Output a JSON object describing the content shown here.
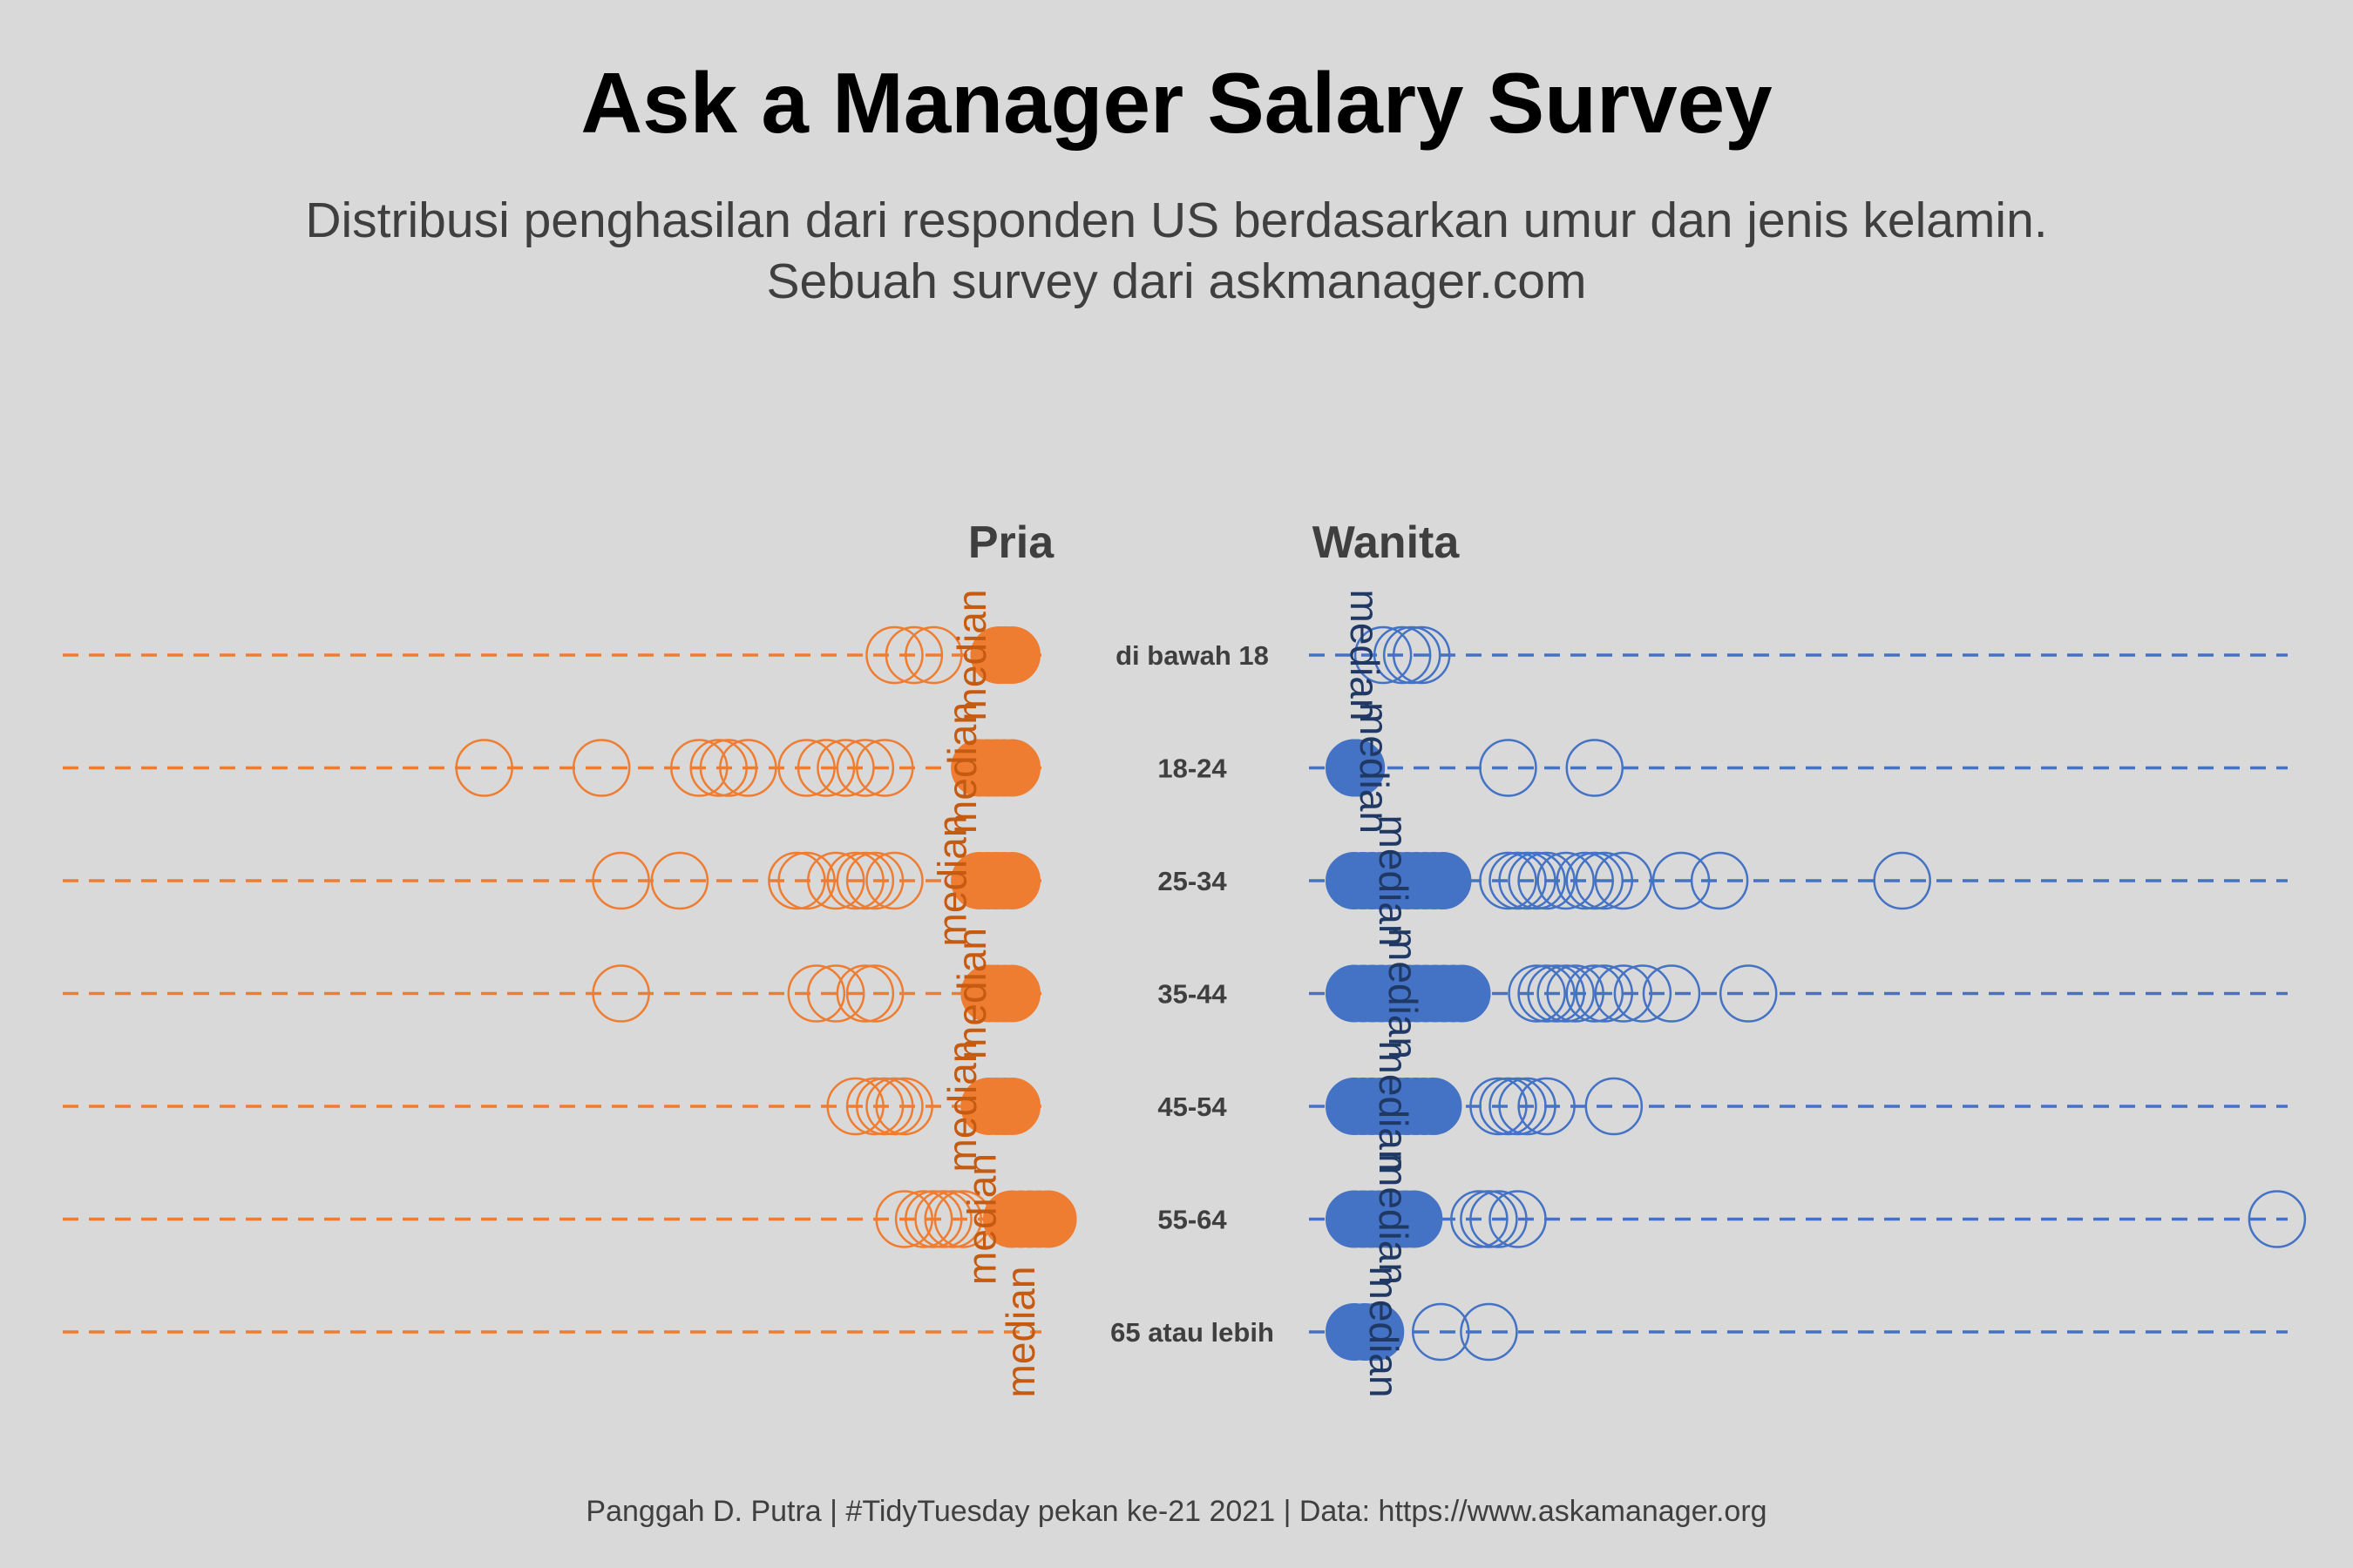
{
  "title": "Ask a Manager Salary Survey",
  "subtitle_lines": [
    "Distribusi penghasilan dari responden US berdasarkan umur dan jenis kelamin.",
    "Sebuah survey dari askmanager.com"
  ],
  "caption": "Panggah D. Putra | #TidyTuesday pekan ke-21 2021 | Data: https://www.askamanager.org",
  "colors": {
    "background": "#d9d9d9",
    "pria": "#ef7d31",
    "wanita": "#4472c4",
    "pria_median_text": "#c55a11",
    "wanita_median_text": "#203864",
    "label_text": "#3f3f3f"
  },
  "chart_data": {
    "type": "scatter",
    "x_unit": "relative salary (0 = center, 1 = far end)",
    "categories": [
      "di bawah 18",
      "18-24",
      "25-34",
      "35-44",
      "45-54",
      "55-64",
      "65 atau lebih"
    ],
    "median_label": "median",
    "series": [
      {
        "name": "Pria",
        "side": "left",
        "dense_extent": [
          0.07,
          0.09,
          0.09,
          0.08,
          0.08,
          0.02,
          0.0
        ],
        "median": [
          0.05,
          0.06,
          0.07,
          0.05,
          0.06,
          0.04,
          0.0
        ],
        "outliers": [
          [
            0.08,
            0.1,
            0.12
          ],
          [
            0.54,
            0.42,
            0.32,
            0.3,
            0.29,
            0.27,
            0.21,
            0.19,
            0.17,
            0.15,
            0.13
          ],
          [
            0.4,
            0.34,
            0.22,
            0.21,
            0.18,
            0.16,
            0.15,
            0.14,
            0.12
          ],
          [
            0.4,
            0.2,
            0.18,
            0.15,
            0.14
          ],
          [
            0.16,
            0.14,
            0.13,
            0.12,
            0.11
          ],
          [
            0.11,
            0.09,
            0.08,
            0.07,
            0.06,
            0.05
          ],
          []
        ]
      },
      {
        "name": "Wanita",
        "side": "right",
        "dense_extent": [
          0.0,
          0.06,
          0.15,
          0.17,
          0.14,
          0.12,
          0.08
        ],
        "median": [
          0.02,
          0.03,
          0.05,
          0.06,
          0.05,
          0.05,
          0.04
        ],
        "outliers": [
          [
            0.03,
            0.05,
            0.06,
            0.07
          ],
          [
            0.16,
            0.25
          ],
          [
            0.16,
            0.17,
            0.18,
            0.19,
            0.2,
            0.22,
            0.24,
            0.25,
            0.26,
            0.28,
            0.34,
            0.38,
            0.57
          ],
          [
            0.19,
            0.2,
            0.21,
            0.22,
            0.23,
            0.25,
            0.26,
            0.28,
            0.3,
            0.33,
            0.41
          ],
          [
            0.15,
            0.16,
            0.17,
            0.18,
            0.2,
            0.27
          ],
          [
            0.13,
            0.14,
            0.15,
            0.17,
            0.96
          ],
          [
            0.09,
            0.14
          ]
        ]
      }
    ],
    "legend": "none",
    "grid": false
  }
}
